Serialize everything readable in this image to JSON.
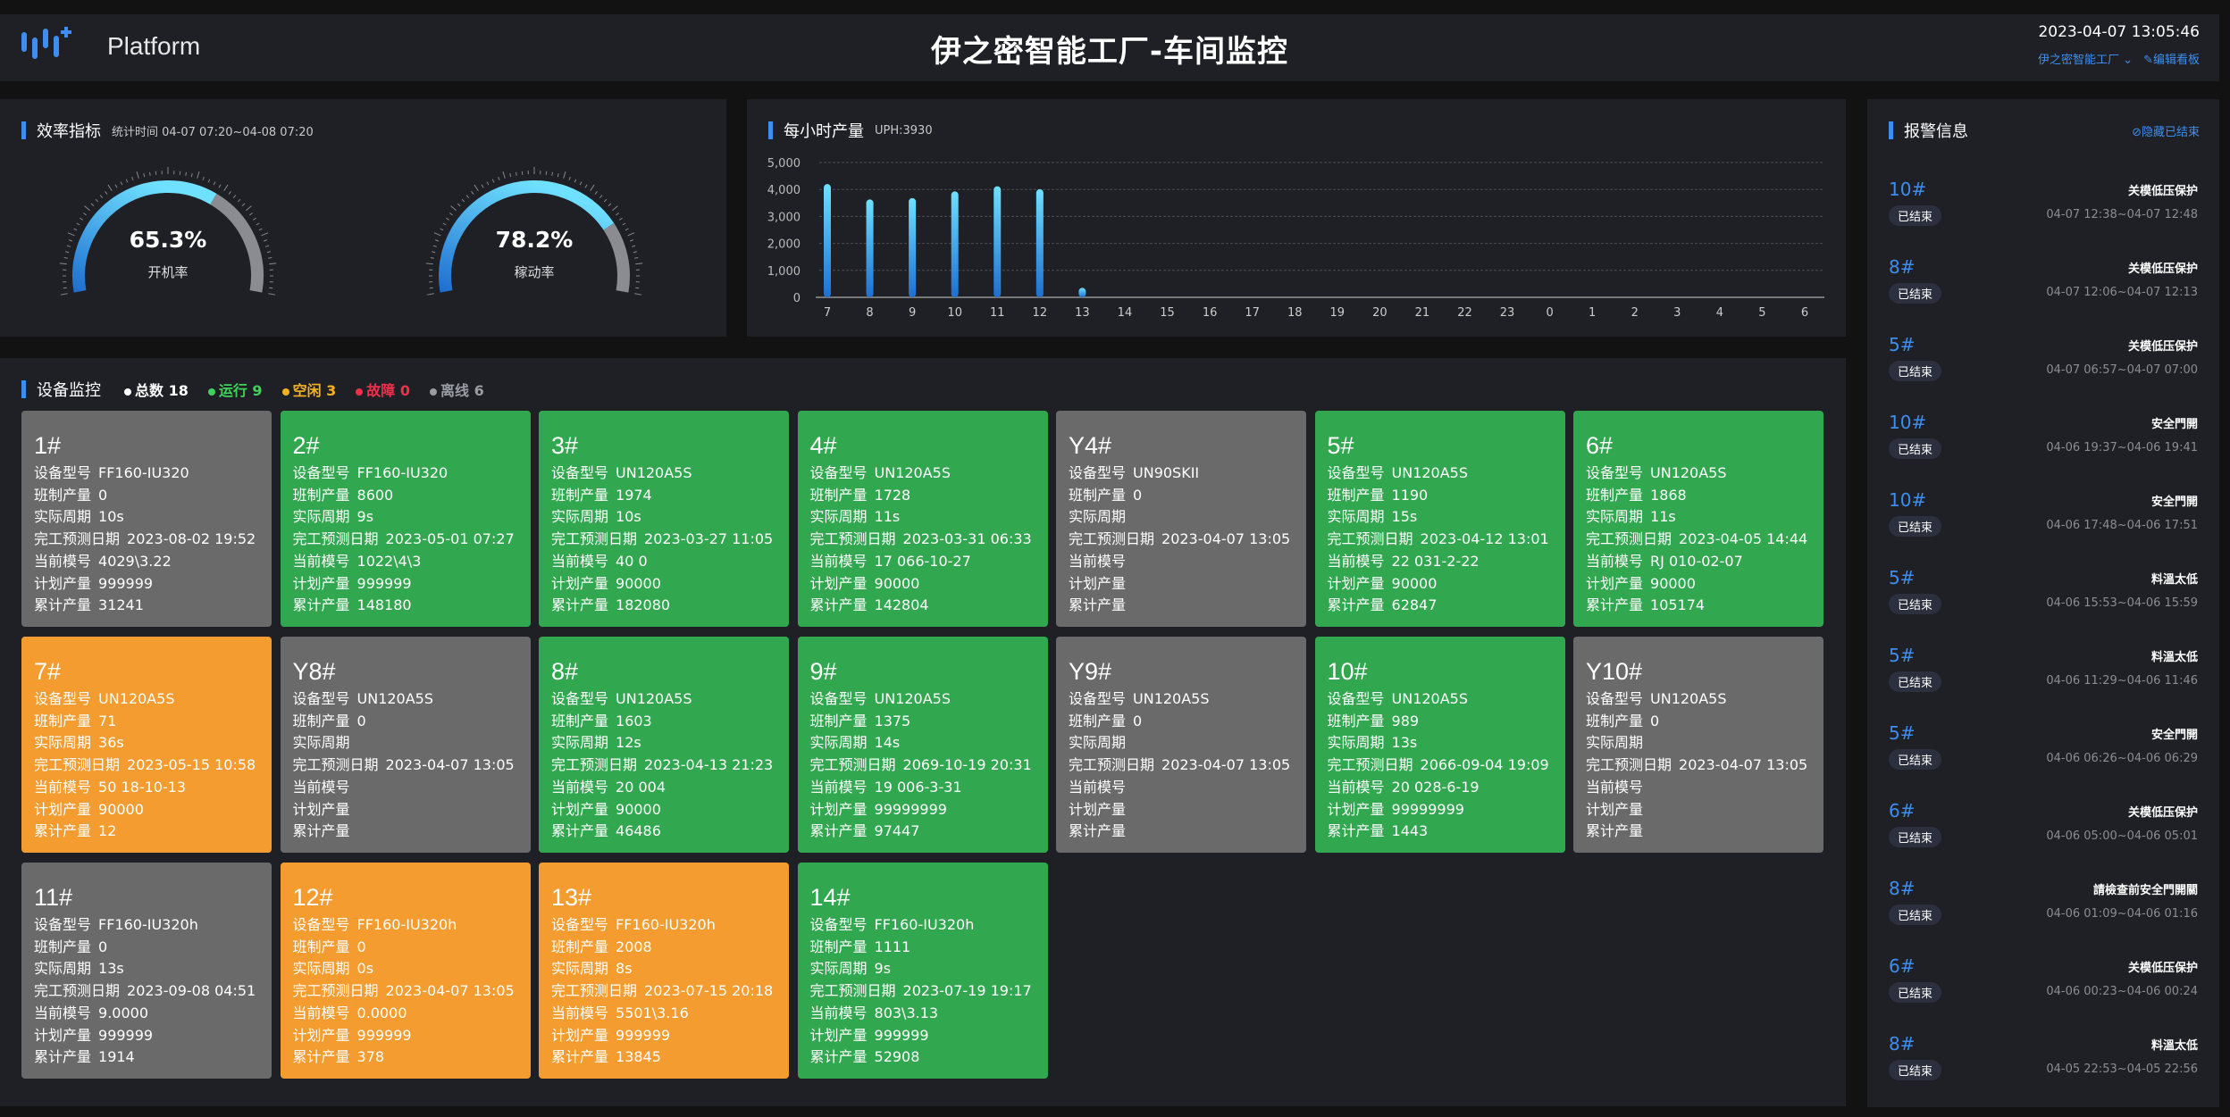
{
  "header": {
    "logo_text": "Platform",
    "title": "伊之密智能工厂-车间监控",
    "datetime": "2023-04-07 13:05:46",
    "factory_select": "伊之密智能工厂",
    "edit_board": "编辑看板"
  },
  "efficiency": {
    "title": "效率指标",
    "period": "统计时间 04-07 07:20~04-08 07:20",
    "gauges": [
      {
        "value_text": "65.3%",
        "value": 65.3,
        "label": "开机率"
      },
      {
        "value_text": "78.2%",
        "value": 78.2,
        "label": "稼动率"
      }
    ]
  },
  "hourly": {
    "title": "每小时产量",
    "uph": "UPH:3930"
  },
  "chart_data": {
    "type": "bar",
    "title": "每小时产量",
    "xlabel": "",
    "ylabel": "",
    "ylim": [
      0,
      5000
    ],
    "yticks": [
      "0",
      "1,000",
      "2,000",
      "3,000",
      "4,000",
      "5,000"
    ],
    "categories": [
      "7",
      "8",
      "9",
      "10",
      "11",
      "12",
      "13",
      "14",
      "15",
      "16",
      "17",
      "18",
      "19",
      "20",
      "21",
      "22",
      "23",
      "0",
      "1",
      "2",
      "3",
      "4",
      "5",
      "6"
    ],
    "values": [
      4200,
      3630,
      3680,
      3930,
      4120,
      4010,
      350,
      0,
      0,
      0,
      0,
      0,
      0,
      0,
      0,
      0,
      0,
      0,
      0,
      0,
      0,
      0,
      0,
      0
    ],
    "grid": true,
    "bar_color": "#3d9be9"
  },
  "devices": {
    "title": "设备监控",
    "summary": [
      {
        "label": "总数 18",
        "color": "#ffffff"
      },
      {
        "label": "运行 9",
        "color": "#3ed35a"
      },
      {
        "label": "空闲 3",
        "color": "#f5b21e"
      },
      {
        "label": "故障 0",
        "color": "#f0304a"
      },
      {
        "label": "离线 6",
        "color": "#9a9ca3"
      }
    ],
    "status_colors": {
      "running": "#31a84f",
      "idle": "#f49c2f",
      "offline": "#6a6a6a"
    },
    "field_labels": [
      "设备型号",
      "班制产量",
      "实际周期",
      "完工预测日期",
      "当前模号",
      "计划产量",
      "累计产量"
    ],
    "items": [
      {
        "name": "1#",
        "status": "offline",
        "values": [
          "FF160-IU320",
          "0",
          "10s",
          "2023-08-02 19:52",
          "4029\\3.22",
          "999999",
          "31241"
        ]
      },
      {
        "name": "2#",
        "status": "running",
        "values": [
          "FF160-IU320",
          "8600",
          "9s",
          "2023-05-01 07:27",
          "1022\\4\\3",
          "999999",
          "148180"
        ]
      },
      {
        "name": "3#",
        "status": "running",
        "values": [
          "UN120A5S",
          "1974",
          "10s",
          "2023-03-27 11:05",
          "40 0",
          "90000",
          "182080"
        ]
      },
      {
        "name": "4#",
        "status": "running",
        "values": [
          "UN120A5S",
          "1728",
          "11s",
          "2023-03-31 06:33",
          "17 066-10-27",
          "90000",
          "142804"
        ]
      },
      {
        "name": "Y4#",
        "status": "offline",
        "values": [
          "UN90SKII",
          "0",
          "",
          "2023-04-07 13:05",
          "",
          "",
          ""
        ]
      },
      {
        "name": "5#",
        "status": "running",
        "values": [
          "UN120A5S",
          "1190",
          "15s",
          "2023-04-12 13:01",
          "22 031-2-22",
          "90000",
          "62847"
        ]
      },
      {
        "name": "6#",
        "status": "running",
        "values": [
          "UN120A5S",
          "1868",
          "11s",
          "2023-04-05 14:44",
          "RJ 010-02-07",
          "90000",
          "105174"
        ]
      },
      {
        "name": "7#",
        "status": "idle",
        "values": [
          "UN120A5S",
          "71",
          "36s",
          "2023-05-15 10:58",
          "50 18-10-13",
          "90000",
          "12"
        ]
      },
      {
        "name": "Y8#",
        "status": "offline",
        "values": [
          "UN120A5S",
          "0",
          "",
          "2023-04-07 13:05",
          "",
          "",
          ""
        ]
      },
      {
        "name": "8#",
        "status": "running",
        "values": [
          "UN120A5S",
          "1603",
          "12s",
          "2023-04-13 21:23",
          "20 004",
          "90000",
          "46486"
        ]
      },
      {
        "name": "9#",
        "status": "running",
        "values": [
          "UN120A5S",
          "1375",
          "14s",
          "2069-10-19 20:31",
          "19 006-3-31",
          "99999999",
          "97447"
        ]
      },
      {
        "name": "Y9#",
        "status": "offline",
        "values": [
          "UN120A5S",
          "0",
          "",
          "2023-04-07 13:05",
          "",
          "",
          ""
        ]
      },
      {
        "name": "10#",
        "status": "running",
        "values": [
          "UN120A5S",
          "989",
          "13s",
          "2066-09-04 19:09",
          "20 028-6-19",
          "99999999",
          "1443"
        ]
      },
      {
        "name": "Y10#",
        "status": "offline",
        "values": [
          "UN120A5S",
          "0",
          "",
          "2023-04-07 13:05",
          "",
          "",
          ""
        ]
      },
      {
        "name": "11#",
        "status": "offline",
        "values": [
          "FF160-IU320h",
          "0",
          "13s",
          "2023-09-08 04:51",
          "9.0000",
          "999999",
          "1914"
        ]
      },
      {
        "name": "12#",
        "status": "idle",
        "values": [
          "FF160-IU320h",
          "0",
          "0s",
          "2023-04-07 13:05",
          "0.0000",
          "999999",
          "378"
        ]
      },
      {
        "name": "13#",
        "status": "idle",
        "values": [
          "FF160-IU320h",
          "2008",
          "8s",
          "2023-07-15 20:18",
          "5501\\3.16",
          "999999",
          "13845"
        ]
      },
      {
        "name": "14#",
        "status": "running",
        "values": [
          "FF160-IU320h",
          "1111",
          "9s",
          "2023-07-19 19:17",
          "803\\3.13",
          "999999",
          "52908"
        ]
      }
    ]
  },
  "alarms": {
    "title": "报警信息",
    "hide_ended": "隐藏已结束",
    "items": [
      {
        "machine": "10#",
        "message": "关模低压保护",
        "status": "已结束",
        "time": "04-07 12:38~04-07 12:48"
      },
      {
        "machine": "8#",
        "message": "关模低压保护",
        "status": "已结束",
        "time": "04-07 12:06~04-07 12:13"
      },
      {
        "machine": "5#",
        "message": "关模低压保护",
        "status": "已结束",
        "time": "04-07 06:57~04-07 07:00"
      },
      {
        "machine": "10#",
        "message": "安全門開",
        "status": "已结束",
        "time": "04-06 19:37~04-06 19:41"
      },
      {
        "machine": "10#",
        "message": "安全門開",
        "status": "已结束",
        "time": "04-06 17:48~04-06 17:51"
      },
      {
        "machine": "5#",
        "message": "料溫太低",
        "status": "已结束",
        "time": "04-06 15:53~04-06 15:59"
      },
      {
        "machine": "5#",
        "message": "料溫太低",
        "status": "已结束",
        "time": "04-06 11:29~04-06 11:46"
      },
      {
        "machine": "5#",
        "message": "安全門開",
        "status": "已结束",
        "time": "04-06 06:26~04-06 06:29"
      },
      {
        "machine": "6#",
        "message": "关模低压保护",
        "status": "已结束",
        "time": "04-06 05:00~04-06 05:01"
      },
      {
        "machine": "8#",
        "message": "請檢查前安全門開關",
        "status": "已结束",
        "time": "04-06 01:09~04-06 01:16"
      },
      {
        "machine": "6#",
        "message": "关模低压保护",
        "status": "已结束",
        "time": "04-06 00:23~04-06 00:24"
      },
      {
        "machine": "8#",
        "message": "料溫太低",
        "status": "已结束",
        "time": "04-05 22:53~04-05 22:56"
      }
    ]
  }
}
